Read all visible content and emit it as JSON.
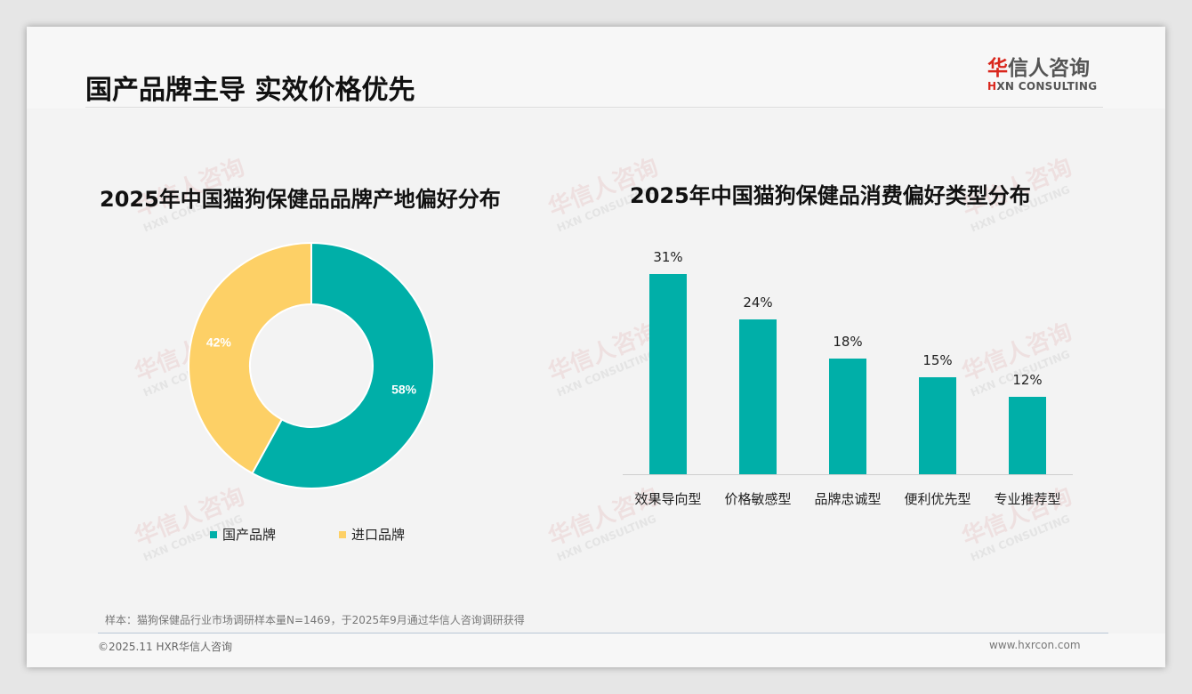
{
  "slide": {
    "title": "国产品牌主导 实效价格优先",
    "logo": {
      "cn_red": "华",
      "cn_rest": "信人咨询",
      "en_mark": "H",
      "en_rest": "XN CONSULTING"
    },
    "watermark": {
      "cn": "华信人咨询",
      "en": "HXN CONSULTING"
    },
    "note": "样本：猫狗保健品行业市场调研样本量N=1469，于2025年9月通过华信人咨询调研获得",
    "copyright": "©2025.11 HXR华信人咨询",
    "website": "www.hxrcon.com"
  },
  "colors": {
    "teal": "#00afa8",
    "yellow": "#fdd066"
  },
  "chart_data": [
    {
      "type": "pie",
      "variant": "donut",
      "title": "2025年中国猫狗保健品品牌产地偏好分布",
      "categories": [
        "国产品牌",
        "进口品牌"
      ],
      "values": [
        58,
        42
      ],
      "labels": [
        "58%",
        "42%"
      ],
      "colors": [
        "#00afa8",
        "#fdd066"
      ],
      "legend_position": "bottom"
    },
    {
      "type": "bar",
      "title": "2025年中国猫狗保健品消费偏好类型分布",
      "categories": [
        "效果导向型",
        "价格敏感型",
        "品牌忠诚型",
        "便利优先型",
        "专业推荐型"
      ],
      "values": [
        31,
        24,
        18,
        15,
        12
      ],
      "labels": [
        "31%",
        "24%",
        "18%",
        "15%",
        "12%"
      ],
      "color": "#00afa8",
      "xlabel": "",
      "ylabel": "",
      "grid": false
    }
  ]
}
